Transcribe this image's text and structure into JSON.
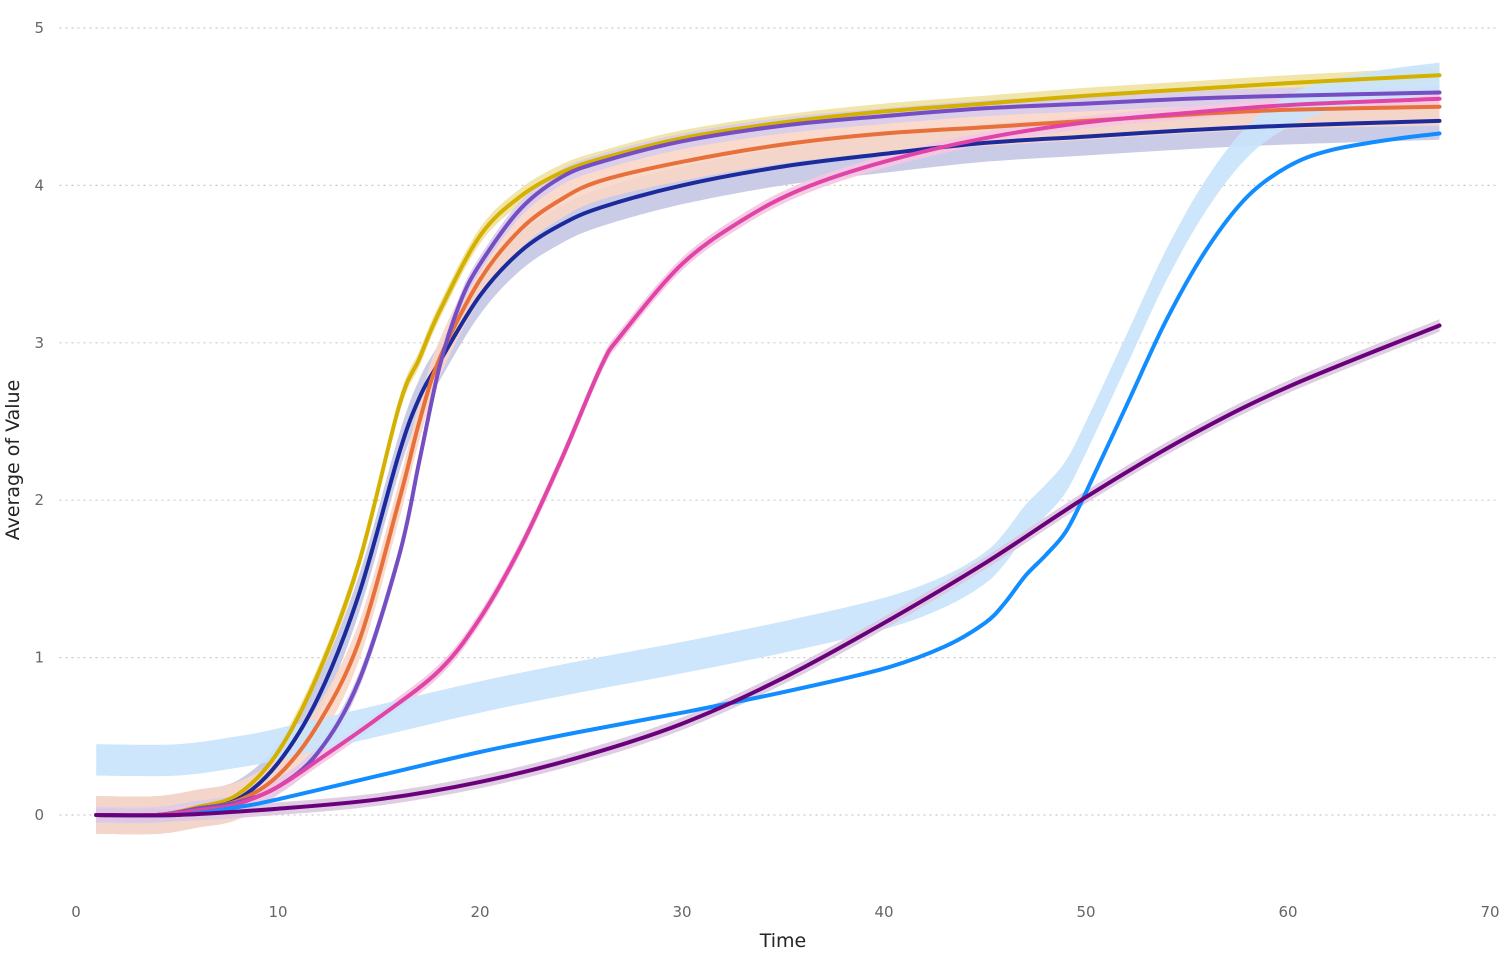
{
  "chart_data": {
    "type": "line",
    "title": "",
    "xlabel": "Time",
    "ylabel": "Average of Value",
    "xlim": [
      0,
      70
    ],
    "ylim": [
      -0.5,
      5
    ],
    "x_ticks": [
      "0",
      "10",
      "20",
      "30",
      "40",
      "50",
      "60",
      "70"
    ],
    "y_ticks": [
      "0",
      "1",
      "2",
      "3",
      "4",
      "5"
    ],
    "grid": "horizontal dotted",
    "legend": "none",
    "series": [
      {
        "color": "#D4B000",
        "band_color": "#F0E2A0",
        "band_width": 0.05,
        "points": [
          [
            1,
            0
          ],
          [
            4,
            0
          ],
          [
            6,
            0.05
          ],
          [
            8,
            0.13
          ],
          [
            10,
            0.4
          ],
          [
            12,
            0.9
          ],
          [
            14,
            1.6
          ],
          [
            16,
            2.6
          ],
          [
            17,
            2.9
          ],
          [
            18,
            3.2
          ],
          [
            20,
            3.68
          ],
          [
            22,
            3.93
          ],
          [
            24,
            4.08
          ],
          [
            26,
            4.17
          ],
          [
            30,
            4.3
          ],
          [
            35,
            4.4
          ],
          [
            40,
            4.47
          ],
          [
            45,
            4.52
          ],
          [
            50,
            4.57
          ],
          [
            55,
            4.61
          ],
          [
            60,
            4.65
          ],
          [
            67.5,
            4.7
          ]
        ]
      },
      {
        "color": "#1C2B9C",
        "band_color": "#C4C6E4",
        "band_width": 0.12,
        "points": [
          [
            1,
            0
          ],
          [
            4,
            0
          ],
          [
            6,
            0.04
          ],
          [
            8,
            0.1
          ],
          [
            10,
            0.33
          ],
          [
            12,
            0.75
          ],
          [
            14,
            1.4
          ],
          [
            16,
            2.3
          ],
          [
            17,
            2.65
          ],
          [
            18,
            2.88
          ],
          [
            20,
            3.3
          ],
          [
            22,
            3.58
          ],
          [
            24,
            3.75
          ],
          [
            26,
            3.86
          ],
          [
            30,
            4.0
          ],
          [
            35,
            4.12
          ],
          [
            40,
            4.2
          ],
          [
            45,
            4.27
          ],
          [
            50,
            4.31
          ],
          [
            55,
            4.35
          ],
          [
            60,
            4.38
          ],
          [
            67.5,
            4.41
          ]
        ]
      },
      {
        "color": "#E8703A",
        "band_color": "#F8D6C6",
        "band_width": 0.12,
        "points": [
          [
            1,
            0
          ],
          [
            4,
            0
          ],
          [
            6,
            0.04
          ],
          [
            8,
            0.09
          ],
          [
            10,
            0.25
          ],
          [
            12,
            0.58
          ],
          [
            14,
            1.1
          ],
          [
            16,
            2.0
          ],
          [
            17,
            2.5
          ],
          [
            18,
            2.9
          ],
          [
            20,
            3.4
          ],
          [
            22,
            3.72
          ],
          [
            24,
            3.91
          ],
          [
            26,
            4.03
          ],
          [
            30,
            4.15
          ],
          [
            35,
            4.26
          ],
          [
            40,
            4.33
          ],
          [
            45,
            4.37
          ],
          [
            50,
            4.41
          ],
          [
            55,
            4.45
          ],
          [
            60,
            4.48
          ],
          [
            67.5,
            4.5
          ]
        ]
      },
      {
        "color": "#744EC2",
        "band_color": "#D8CCEC",
        "band_width": 0.05,
        "points": [
          [
            1,
            0
          ],
          [
            4,
            0
          ],
          [
            6,
            0.04
          ],
          [
            8,
            0.08
          ],
          [
            10,
            0.18
          ],
          [
            12,
            0.4
          ],
          [
            14,
            0.85
          ],
          [
            16,
            1.65
          ],
          [
            17,
            2.25
          ],
          [
            18,
            2.85
          ],
          [
            19,
            3.25
          ],
          [
            20,
            3.5
          ],
          [
            22,
            3.85
          ],
          [
            24,
            4.05
          ],
          [
            26,
            4.15
          ],
          [
            30,
            4.28
          ],
          [
            35,
            4.38
          ],
          [
            40,
            4.44
          ],
          [
            45,
            4.49
          ],
          [
            50,
            4.52
          ],
          [
            55,
            4.55
          ],
          [
            60,
            4.57
          ],
          [
            67.5,
            4.59
          ]
        ]
      },
      {
        "color": "#E044A7",
        "band_color": "#F5C6E2",
        "band_width": 0.04,
        "points": [
          [
            1,
            0
          ],
          [
            4,
            0
          ],
          [
            6,
            0.03
          ],
          [
            8,
            0.07
          ],
          [
            10,
            0.18
          ],
          [
            12,
            0.35
          ],
          [
            15,
            0.62
          ],
          [
            18,
            0.92
          ],
          [
            20,
            1.25
          ],
          [
            22,
            1.7
          ],
          [
            24,
            2.25
          ],
          [
            26,
            2.85
          ],
          [
            27,
            3.05
          ],
          [
            30,
            3.5
          ],
          [
            33,
            3.78
          ],
          [
            36,
            3.98
          ],
          [
            40,
            4.15
          ],
          [
            45,
            4.3
          ],
          [
            50,
            4.4
          ],
          [
            55,
            4.46
          ],
          [
            60,
            4.51
          ],
          [
            67.5,
            4.55
          ]
        ]
      },
      {
        "color": "#118DFF",
        "band_color": "#C9E3FB",
        "band_width": 0.1,
        "band_offset": 0.35,
        "points": [
          [
            1,
            0
          ],
          [
            5,
            0
          ],
          [
            8,
            0.05
          ],
          [
            10,
            0.1
          ],
          [
            15,
            0.25
          ],
          [
            20,
            0.4
          ],
          [
            25,
            0.53
          ],
          [
            30,
            0.65
          ],
          [
            35,
            0.78
          ],
          [
            40,
            0.93
          ],
          [
            43,
            1.07
          ],
          [
            45,
            1.22
          ],
          [
            46,
            1.35
          ],
          [
            47,
            1.52
          ],
          [
            48,
            1.65
          ],
          [
            49,
            1.8
          ],
          [
            50,
            2.05
          ],
          [
            52,
            2.6
          ],
          [
            54,
            3.15
          ],
          [
            56,
            3.6
          ],
          [
            58,
            3.93
          ],
          [
            60,
            4.12
          ],
          [
            62,
            4.22
          ],
          [
            65,
            4.29
          ],
          [
            67.5,
            4.33
          ]
        ]
      },
      {
        "color": "#6B007B",
        "band_color": "#DCC8E0",
        "band_width": 0.04,
        "points": [
          [
            1,
            0
          ],
          [
            5,
            0
          ],
          [
            10,
            0.04
          ],
          [
            15,
            0.1
          ],
          [
            20,
            0.21
          ],
          [
            25,
            0.37
          ],
          [
            30,
            0.58
          ],
          [
            35,
            0.87
          ],
          [
            40,
            1.22
          ],
          [
            45,
            1.6
          ],
          [
            50,
            2.02
          ],
          [
            55,
            2.4
          ],
          [
            60,
            2.72
          ],
          [
            67.5,
            3.11
          ]
        ]
      }
    ]
  }
}
